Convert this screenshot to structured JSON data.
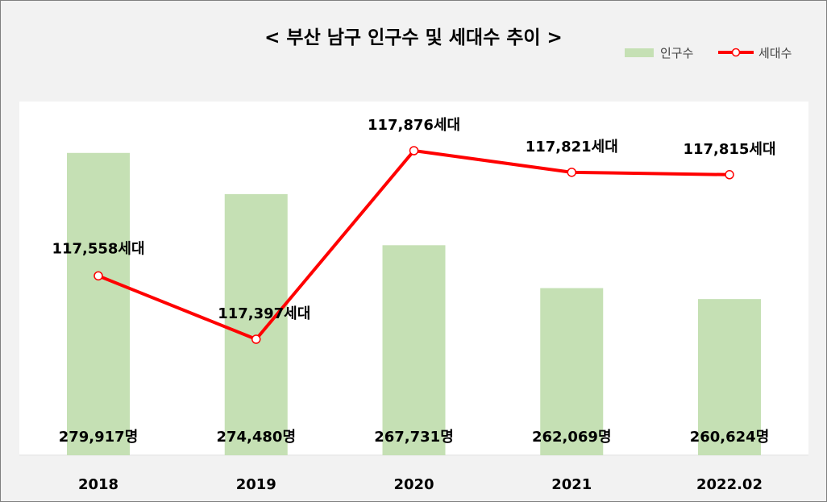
{
  "chart_data": {
    "type": "bar+line",
    "title": "< 부산 남구 인구수 및 세대수 추이 >",
    "categories": [
      "2018",
      "2019",
      "2020",
      "2021",
      "2022.02"
    ],
    "series": [
      {
        "name": "인구수",
        "type": "bar",
        "color": "#c5e0b4",
        "values": [
          279917,
          274480,
          267731,
          262069,
          260624
        ],
        "labels": [
          "279,917명",
          "274,480명",
          "267,731명",
          "262,069명",
          "260,624명"
        ]
      },
      {
        "name": "세대수",
        "type": "line",
        "color": "#ff0000",
        "values": [
          117558,
          117397,
          117876,
          117821,
          117815
        ],
        "labels": [
          "117,558세대",
          "117,397세대",
          "117,876세대",
          "117,821세대",
          "117,815세대"
        ]
      }
    ],
    "legend_position": "top-right",
    "grid": false
  }
}
